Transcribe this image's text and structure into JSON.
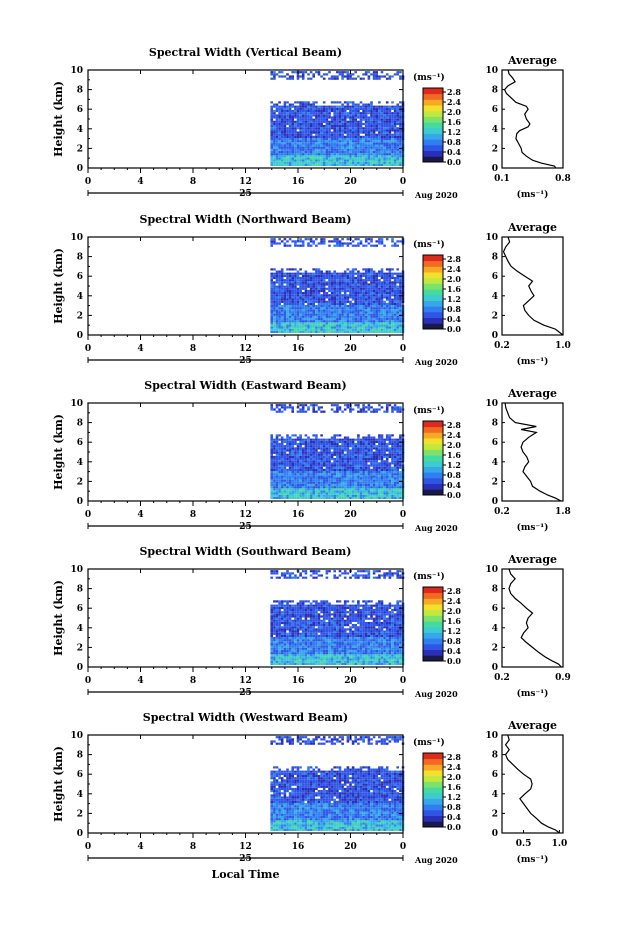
{
  "chart_data": [
    {
      "type": "heatmap",
      "title": "Spectral Width (Vertical Beam)",
      "ylabel": "Height (km)",
      "x_ticks": [
        "0",
        "4",
        "8",
        "12",
        "16",
        "20",
        "0"
      ],
      "date_label": "25",
      "month_label": "Aug 2020",
      "y_ticks": [
        "0",
        "2",
        "4",
        "6",
        "8",
        "10"
      ],
      "xlim": [
        0,
        24
      ],
      "ylim": [
        0,
        10
      ],
      "data_start_hour": 13.9,
      "colorbar": {
        "unit": "(ms⁻¹)",
        "ticks": [
          "0.0",
          "0.4",
          "0.8",
          "1.2",
          "1.6",
          "2.0",
          "2.4",
          "2.8"
        ]
      },
      "average": {
        "title": "Average",
        "xlabel": "(ms⁻¹)",
        "x_ticks": [
          "0.1",
          "0.8"
        ],
        "xlim": [
          0.1,
          0.8
        ],
        "profile": [
          [
            0,
            0.72
          ],
          [
            0.2,
            0.7
          ],
          [
            0.5,
            0.55
          ],
          [
            0.8,
            0.45
          ],
          [
            1.2,
            0.38
          ],
          [
            1.6,
            0.33
          ],
          [
            2,
            0.32
          ],
          [
            2.5,
            0.29
          ],
          [
            3,
            0.26
          ],
          [
            3.5,
            0.27
          ],
          [
            3.8,
            0.3
          ],
          [
            4.2,
            0.4
          ],
          [
            4.5,
            0.42
          ],
          [
            5,
            0.38
          ],
          [
            5.5,
            0.36
          ],
          [
            6,
            0.4
          ],
          [
            6.3,
            0.38
          ],
          [
            6.7,
            0.26
          ],
          [
            7.2,
            0.2
          ],
          [
            7.6,
            0.15
          ],
          [
            8,
            0.13
          ],
          [
            8.4,
            0.17
          ],
          [
            8.8,
            0.25
          ],
          [
            9.2,
            0.22
          ],
          [
            9.6,
            0.18
          ],
          [
            10,
            0.17
          ]
        ]
      }
    },
    {
      "type": "heatmap",
      "title": "Spectral Width (Northward Beam)",
      "ylabel": "Height (km)",
      "x_ticks": [
        "0",
        "4",
        "8",
        "12",
        "16",
        "20",
        "0"
      ],
      "date_label": "25",
      "month_label": "Aug 2020",
      "y_ticks": [
        "0",
        "2",
        "4",
        "6",
        "8",
        "10"
      ],
      "xlim": [
        0,
        24
      ],
      "ylim": [
        0,
        10
      ],
      "data_start_hour": 13.9,
      "colorbar": {
        "unit": "(ms⁻¹)",
        "ticks": [
          "0.0",
          "0.4",
          "0.8",
          "1.2",
          "1.6",
          "2.0",
          "2.4",
          "2.8"
        ]
      },
      "average": {
        "title": "Average",
        "xlabel": "(ms⁻¹)",
        "x_ticks": [
          "0.2",
          "1.0"
        ],
        "xlim": [
          0.2,
          1.0
        ],
        "profile": [
          [
            0,
            1.0
          ],
          [
            0.3,
            0.95
          ],
          [
            0.6,
            0.9
          ],
          [
            1,
            0.75
          ],
          [
            1.5,
            0.62
          ],
          [
            2,
            0.55
          ],
          [
            2.5,
            0.5
          ],
          [
            3,
            0.48
          ],
          [
            3.5,
            0.55
          ],
          [
            4,
            0.62
          ],
          [
            4.5,
            0.58
          ],
          [
            5,
            0.55
          ],
          [
            5.5,
            0.6
          ],
          [
            6,
            0.5
          ],
          [
            6.5,
            0.4
          ],
          [
            7,
            0.32
          ],
          [
            7.5,
            0.28
          ],
          [
            8,
            0.25
          ],
          [
            8.5,
            0.22
          ],
          [
            9,
            0.25
          ],
          [
            9.5,
            0.3
          ],
          [
            10,
            0.28
          ]
        ]
      }
    },
    {
      "type": "heatmap",
      "title": "Spectral Width (Eastward Beam)",
      "ylabel": "Height (km)",
      "x_ticks": [
        "0",
        "4",
        "8",
        "12",
        "16",
        "20",
        "0"
      ],
      "date_label": "25",
      "month_label": "Aug 2020",
      "y_ticks": [
        "0",
        "2",
        "4",
        "6",
        "8",
        "10"
      ],
      "xlim": [
        0,
        24
      ],
      "ylim": [
        0,
        10
      ],
      "data_start_hour": 13.9,
      "colorbar": {
        "unit": "(ms⁻¹)",
        "ticks": [
          "0.0",
          "0.4",
          "0.8",
          "1.2",
          "1.6",
          "2.0",
          "2.4",
          "2.8"
        ]
      },
      "average": {
        "title": "Average",
        "xlabel": "(ms⁻¹)",
        "x_ticks": [
          "0.2",
          "1.8"
        ],
        "xlim": [
          0.2,
          1.8
        ],
        "profile": [
          [
            0,
            1.75
          ],
          [
            0.3,
            1.6
          ],
          [
            0.6,
            1.4
          ],
          [
            1,
            1.2
          ],
          [
            1.5,
            1.0
          ],
          [
            2,
            0.95
          ],
          [
            2.5,
            0.85
          ],
          [
            3,
            0.75
          ],
          [
            3.5,
            0.8
          ],
          [
            4,
            0.9
          ],
          [
            4.5,
            0.85
          ],
          [
            5,
            0.75
          ],
          [
            5.5,
            0.7
          ],
          [
            6,
            0.75
          ],
          [
            6.5,
            0.9
          ],
          [
            7,
            1.1
          ],
          [
            7.3,
            0.7
          ],
          [
            7.6,
            1.1
          ],
          [
            8,
            0.55
          ],
          [
            8.5,
            0.4
          ],
          [
            9,
            0.35
          ],
          [
            9.5,
            0.3
          ],
          [
            10,
            0.28
          ]
        ]
      }
    },
    {
      "type": "heatmap",
      "title": "Spectral Width (Southward Beam)",
      "ylabel": "Height (km)",
      "x_ticks": [
        "0",
        "4",
        "8",
        "12",
        "16",
        "20",
        "0"
      ],
      "date_label": "25",
      "month_label": "Aug 2020",
      "y_ticks": [
        "0",
        "2",
        "4",
        "6",
        "8",
        "10"
      ],
      "xlim": [
        0,
        24
      ],
      "ylim": [
        0,
        10
      ],
      "data_start_hour": 13.9,
      "colorbar": {
        "unit": "(ms⁻¹)",
        "ticks": [
          "0.0",
          "0.4",
          "0.8",
          "1.2",
          "1.6",
          "2.0",
          "2.4",
          "2.8"
        ]
      },
      "average": {
        "title": "Average",
        "xlabel": "(ms⁻¹)",
        "x_ticks": [
          "0.2",
          "0.9"
        ],
        "xlim": [
          0.2,
          0.9
        ],
        "profile": [
          [
            0,
            0.88
          ],
          [
            0.3,
            0.85
          ],
          [
            0.6,
            0.78
          ],
          [
            1,
            0.7
          ],
          [
            1.5,
            0.62
          ],
          [
            2,
            0.55
          ],
          [
            2.5,
            0.48
          ],
          [
            3,
            0.42
          ],
          [
            3.5,
            0.45
          ],
          [
            4,
            0.5
          ],
          [
            4.5,
            0.48
          ],
          [
            5,
            0.5
          ],
          [
            5.5,
            0.55
          ],
          [
            6,
            0.48
          ],
          [
            6.5,
            0.42
          ],
          [
            7,
            0.35
          ],
          [
            7.5,
            0.3
          ],
          [
            8,
            0.28
          ],
          [
            8.5,
            0.3
          ],
          [
            9,
            0.35
          ],
          [
            9.5,
            0.3
          ],
          [
            10,
            0.28
          ]
        ]
      }
    },
    {
      "type": "heatmap",
      "title": "Spectral Width (Westward Beam)",
      "ylabel": "Height (km)",
      "x_ticks": [
        "0",
        "4",
        "8",
        "12",
        "16",
        "20",
        "0"
      ],
      "date_label": "25",
      "month_label": "Aug 2020",
      "xlabel": "Local Time",
      "y_ticks": [
        "0",
        "2",
        "4",
        "6",
        "8",
        "10"
      ],
      "xlim": [
        0,
        24
      ],
      "ylim": [
        0,
        10
      ],
      "data_start_hour": 13.9,
      "colorbar": {
        "unit": "(ms⁻¹)",
        "ticks": [
          "0.0",
          "0.4",
          "0.8",
          "1.2",
          "1.6",
          "2.0",
          "2.4",
          "2.8"
        ]
      },
      "average": {
        "title": "Average",
        "xlabel": "(ms⁻¹)",
        "x_ticks": [
          "0.5",
          "1.0"
        ],
        "xlim": [
          0.2,
          1.05
        ],
        "profile": [
          [
            0,
            1.0
          ],
          [
            0.3,
            0.95
          ],
          [
            0.6,
            0.85
          ],
          [
            1,
            0.75
          ],
          [
            1.5,
            0.68
          ],
          [
            2,
            0.6
          ],
          [
            2.5,
            0.55
          ],
          [
            3,
            0.5
          ],
          [
            3.5,
            0.45
          ],
          [
            4,
            0.52
          ],
          [
            4.5,
            0.6
          ],
          [
            5,
            0.62
          ],
          [
            5.5,
            0.6
          ],
          [
            6,
            0.5
          ],
          [
            6.5,
            0.42
          ],
          [
            7,
            0.35
          ],
          [
            7.5,
            0.28
          ],
          [
            8,
            0.25
          ],
          [
            8.5,
            0.3
          ],
          [
            9,
            0.25
          ],
          [
            9.5,
            0.3
          ],
          [
            10,
            0.28
          ]
        ]
      }
    }
  ]
}
